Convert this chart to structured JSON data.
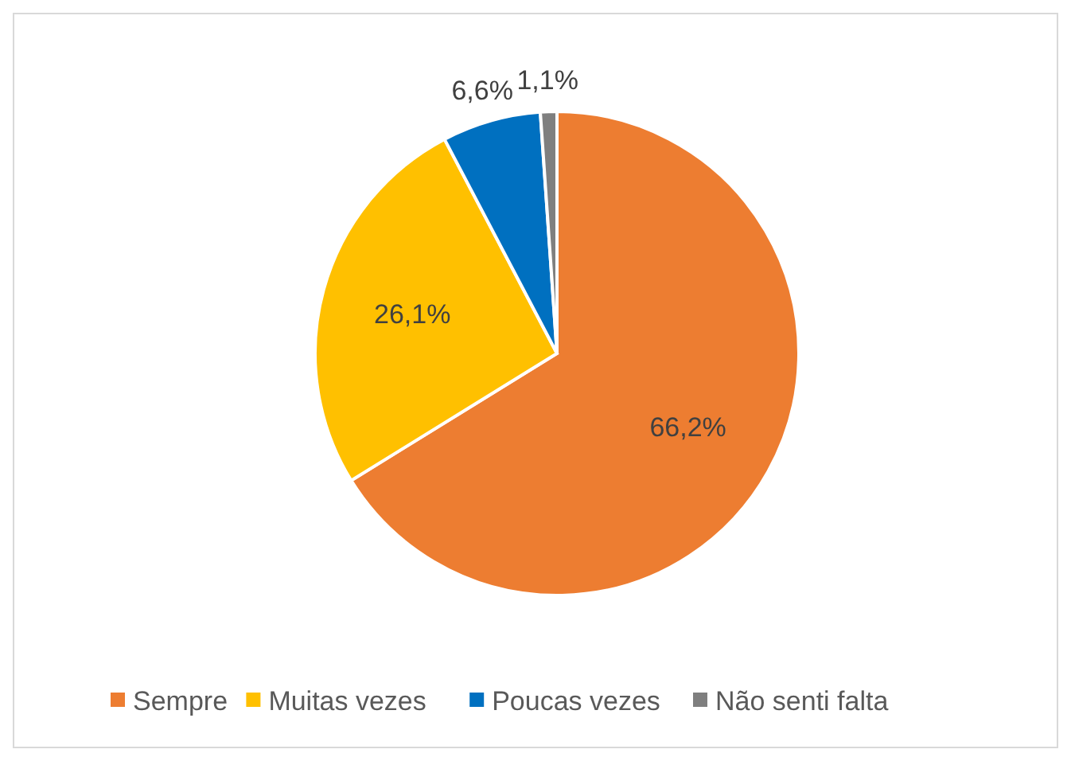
{
  "chart_data": {
    "type": "pie",
    "categories": [
      "Sempre",
      "Muitas vezes",
      "Poucas vezes",
      "Não senti falta"
    ],
    "values": [
      66.2,
      26.1,
      6.6,
      1.1
    ],
    "colors": [
      "#ed7d31",
      "#ffc000",
      "#0070c0",
      "#7f7f7f"
    ],
    "value_labels": [
      "66,2%",
      "26,1%",
      "6,6%",
      "1,1%"
    ],
    "legend": "bottom"
  }
}
